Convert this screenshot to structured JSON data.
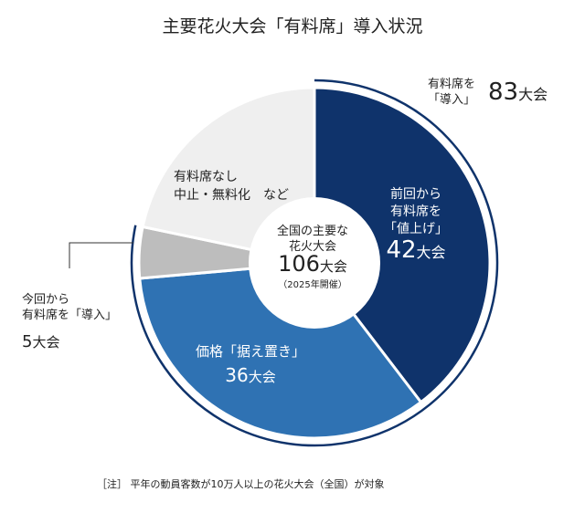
{
  "title": "主要花火大会「有料席」導入状況",
  "chart_data": {
    "type": "pie",
    "donut": true,
    "title": "主要花火大会「有料席」導入状況",
    "total": {
      "line1": "全国の主要な",
      "line2": "花火大会",
      "value": "106",
      "unit": "大会",
      "note": "（2025年開催）"
    },
    "slices": [
      {
        "label_lines": [
          "前回から",
          "有料席を",
          "「値上げ」"
        ],
        "value": 42,
        "value_text": "42",
        "unit": "大会",
        "color": "#0f336b"
      },
      {
        "label_lines": [
          "価格「据え置き」"
        ],
        "value": 36,
        "value_text": "36",
        "unit": "大会",
        "color": "#2f72b3"
      },
      {
        "label_lines": [
          "今回から",
          "有料席を「導入」"
        ],
        "value": 5,
        "value_text": "5",
        "unit": "大会",
        "color": "#bdbdbd"
      },
      {
        "label_lines": [
          "有料席なし",
          "中止・無料化　など"
        ],
        "value": 23,
        "color": "#efefef"
      }
    ],
    "bracket": {
      "label_lines": [
        "有料席を",
        "「導入」"
      ],
      "value_text": "83",
      "unit": "大会",
      "color": "#0f336b"
    }
  },
  "footnote": "［注］ 平年の動員客数が10万人以上の花火大会（全国）が対象"
}
